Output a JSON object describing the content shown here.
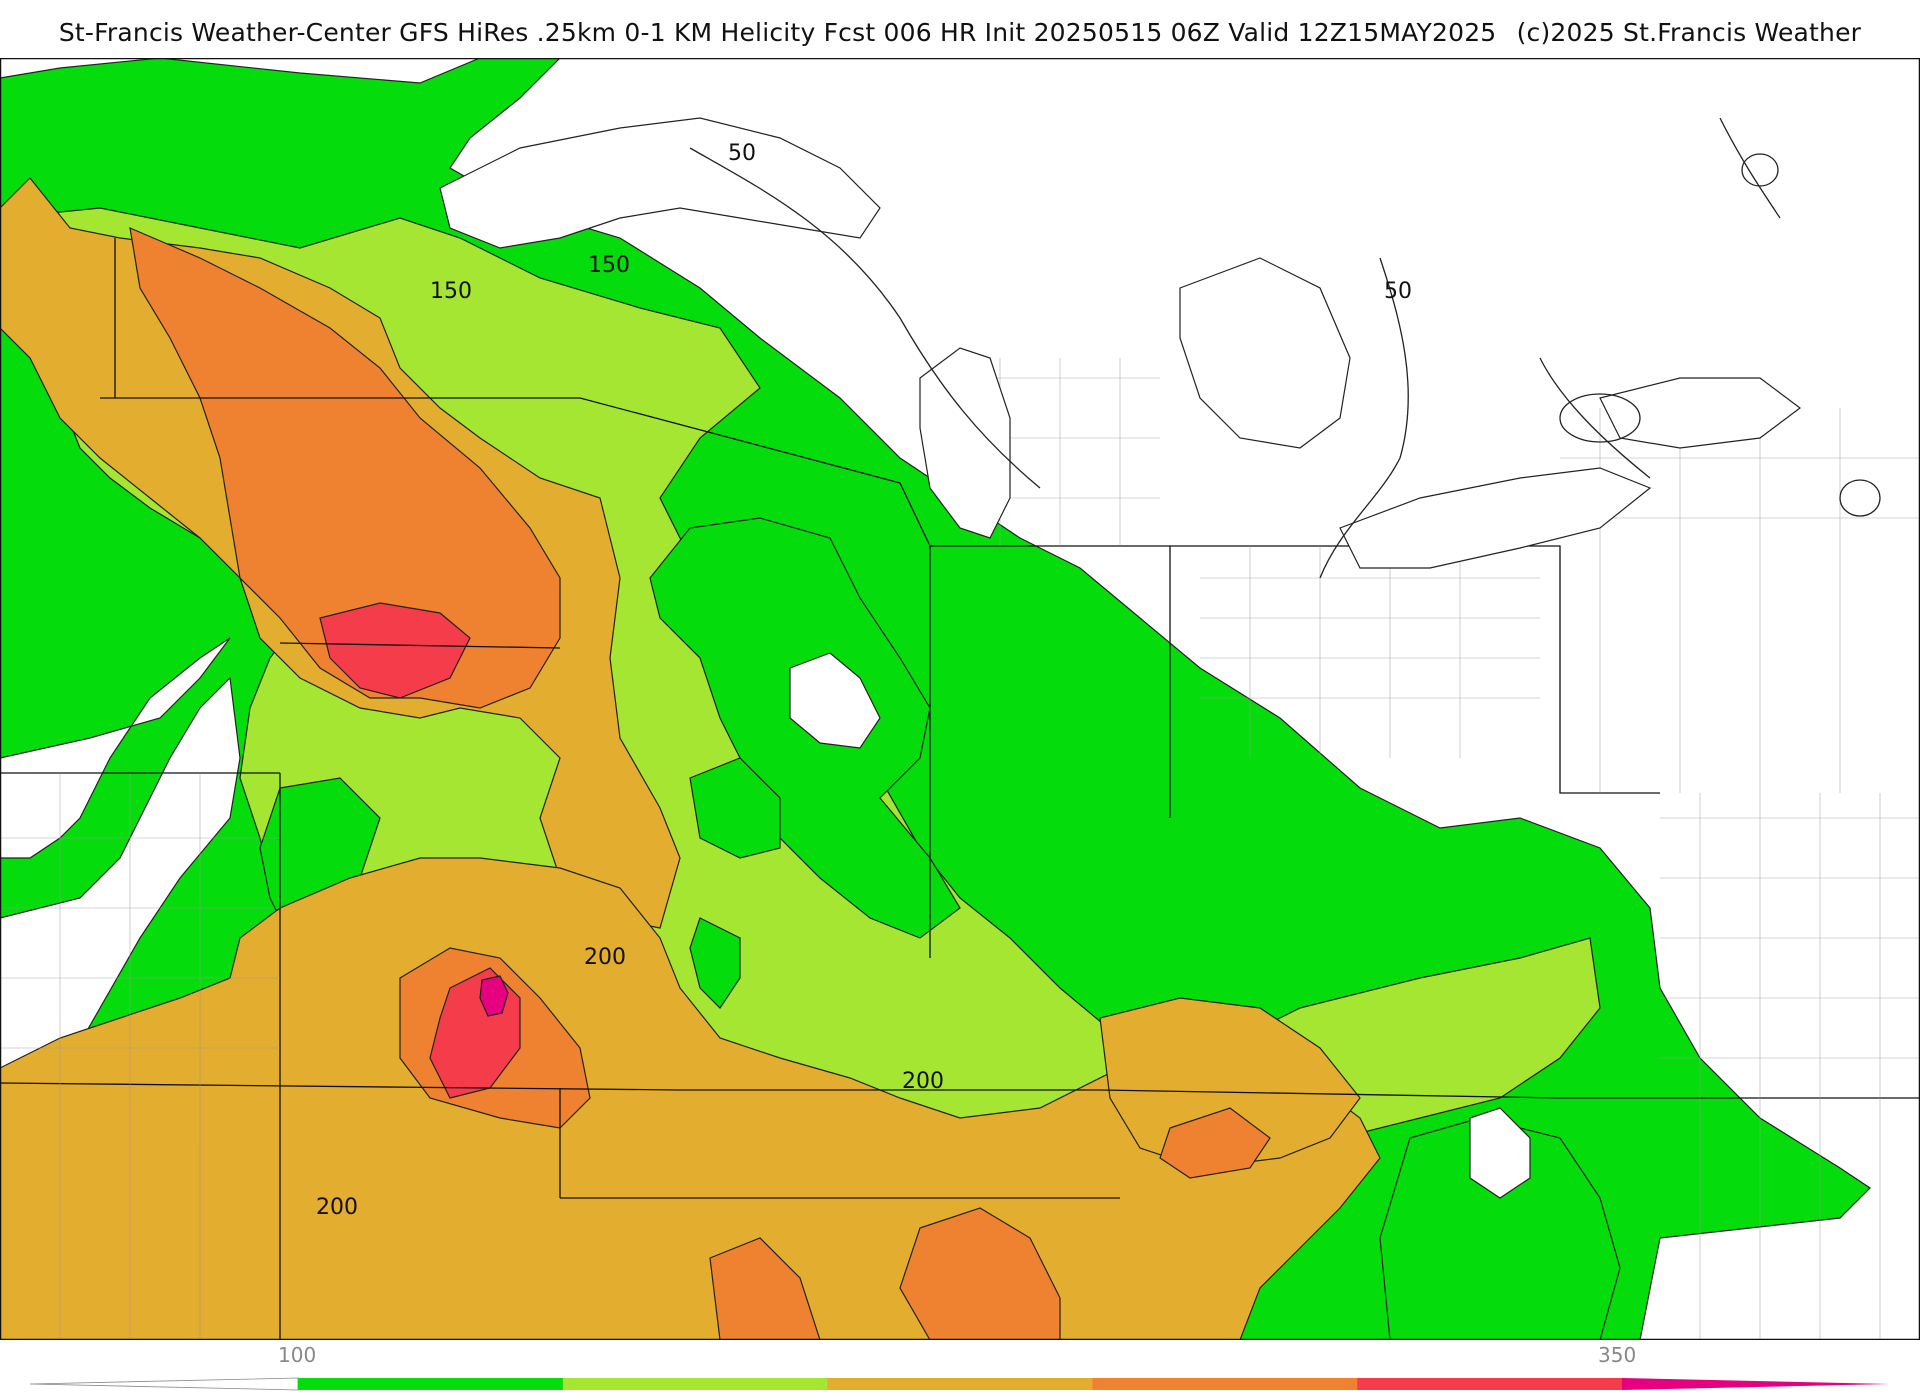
{
  "header": {
    "title": "St-Francis Weather-Center GFS HiRes .25km 0-1 KM Helicity Fcst 006 HR Init 20250515 06Z  Valid 12Z15MAY2025",
    "copyright": "(c)2025 St.Francis Weather"
  },
  "contour_labels": [
    "50",
    "50",
    "150",
    "150",
    "200",
    "200",
    "200"
  ],
  "legend": {
    "min_label": "100",
    "max_label": "350",
    "bins": [
      {
        "from": 100,
        "to": 150,
        "color": "#05dc0b"
      },
      {
        "from": 150,
        "to": 200,
        "color": "#a4e632"
      },
      {
        "from": 200,
        "to": 250,
        "color": "#e3ad2f"
      },
      {
        "from": 250,
        "to": 300,
        "color": "#ef8230"
      },
      {
        "from": 300,
        "to": 350,
        "color": "#f53c4a"
      },
      {
        "from": 350,
        "to": 400,
        "color": "#e6007f"
      }
    ]
  },
  "colors": {
    "bright_green": "#05dc0b",
    "light_green": "#a4e632",
    "tan": "#e3ad2f",
    "orange": "#ef8230",
    "red": "#f53c4a",
    "magenta": "#e6007f"
  }
}
